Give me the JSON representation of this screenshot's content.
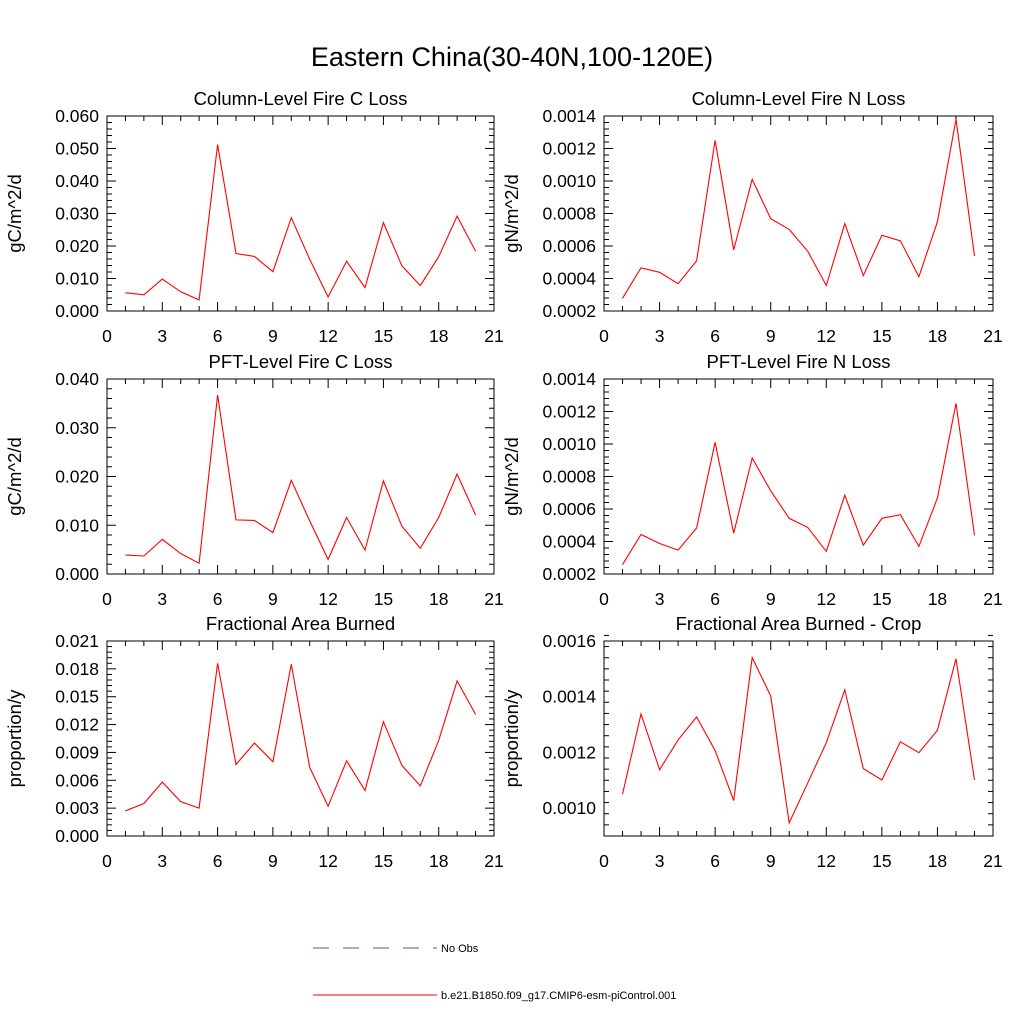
{
  "figure": {
    "title": "Eastern China(30-40N,100-120E)",
    "legend": [
      {
        "label": "No Obs",
        "color": "#4a5fa8",
        "style": "dashed"
      },
      {
        "label": "b.e21.B1850.f09_g17.CMIP6-esm-piControl.001",
        "color": "#ff0000",
        "style": "solid"
      }
    ]
  },
  "chart_data": [
    {
      "type": "line",
      "title": "Column-Level Fire C Loss",
      "ylabel": "gC/m^2/d",
      "xlabel": "",
      "xlim": [
        0,
        21
      ],
      "ylim": [
        0,
        0.06
      ],
      "xticks": [
        "0",
        "3",
        "6",
        "9",
        "12",
        "15",
        "18",
        "21"
      ],
      "yticks": [
        "0.000",
        "0.010",
        "0.020",
        "0.030",
        "0.040",
        "0.050",
        "0.060"
      ],
      "series": [
        {
          "name": "b.e21.B1850.f09_g17.CMIP6-esm-piControl.001",
          "color": "#ff0000",
          "x": [
            1,
            2,
            3,
            4,
            5,
            6,
            7,
            8,
            9,
            10,
            11,
            12,
            13,
            14,
            15,
            16,
            17,
            18,
            19,
            20
          ],
          "values": [
            0.0056,
            0.005,
            0.0098,
            0.0059,
            0.0034,
            0.0512,
            0.0177,
            0.0168,
            0.0121,
            0.0287,
            0.0159,
            0.0043,
            0.0153,
            0.0072,
            0.0272,
            0.0139,
            0.0078,
            0.0167,
            0.0292,
            0.0184
          ]
        }
      ]
    },
    {
      "type": "line",
      "title": "Column-Level Fire N Loss",
      "ylabel": "gN/m^2/d",
      "xlabel": "",
      "xlim": [
        0,
        21
      ],
      "ylim": [
        0.0002,
        0.0014
      ],
      "xticks": [
        "0",
        "3",
        "6",
        "9",
        "12",
        "15",
        "18",
        "21"
      ],
      "yticks": [
        "0.0002",
        "0.0004",
        "0.0006",
        "0.0008",
        "0.0010",
        "0.0012",
        "0.0014"
      ],
      "series": [
        {
          "name": "b.e21.B1850.f09_g17.CMIP6-esm-piControl.001",
          "color": "#ff0000",
          "x": [
            1,
            2,
            3,
            4,
            5,
            6,
            7,
            8,
            9,
            10,
            11,
            12,
            13,
            14,
            15,
            16,
            17,
            18,
            19,
            20
          ],
          "values": [
            0.000278,
            0.000465,
            0.000438,
            0.000368,
            0.000508,
            0.00125,
            0.000576,
            0.00101,
            0.000768,
            0.000702,
            0.000567,
            0.000357,
            0.000737,
            0.000418,
            0.000666,
            0.000632,
            0.000411,
            0.000749,
            0.00138,
            0.000538
          ]
        }
      ]
    },
    {
      "type": "line",
      "title": "PFT-Level Fire C Loss",
      "ylabel": "gC/m^2/d",
      "xlabel": "",
      "xlim": [
        0,
        21
      ],
      "ylim": [
        0,
        0.04
      ],
      "xticks": [
        "0",
        "3",
        "6",
        "9",
        "12",
        "15",
        "18",
        "21"
      ],
      "yticks": [
        "0.000",
        "0.010",
        "0.020",
        "0.030",
        "0.040"
      ],
      "series": [
        {
          "name": "b.e21.B1850.f09_g17.CMIP6-esm-piControl.001",
          "color": "#ff0000",
          "x": [
            1,
            2,
            3,
            4,
            5,
            6,
            7,
            8,
            9,
            10,
            11,
            12,
            13,
            14,
            15,
            16,
            17,
            18,
            19,
            20
          ],
          "values": [
            0.0039,
            0.0037,
            0.0071,
            0.0042,
            0.0022,
            0.0367,
            0.0111,
            0.011,
            0.0085,
            0.0192,
            0.0109,
            0.003,
            0.0116,
            0.0049,
            0.0191,
            0.0098,
            0.0053,
            0.0116,
            0.0205,
            0.0121
          ]
        }
      ]
    },
    {
      "type": "line",
      "title": "PFT-Level Fire N Loss",
      "ylabel": "gN/m^2/d",
      "xlabel": "",
      "xlim": [
        0,
        21
      ],
      "ylim": [
        0.0002,
        0.0014
      ],
      "xticks": [
        "0",
        "3",
        "6",
        "9",
        "12",
        "15",
        "18",
        "21"
      ],
      "yticks": [
        "0.0002",
        "0.0004",
        "0.0006",
        "0.0008",
        "0.0010",
        "0.0012",
        "0.0014"
      ],
      "series": [
        {
          "name": "b.e21.B1850.f09_g17.CMIP6-esm-piControl.001",
          "color": "#ff0000",
          "x": [
            1,
            2,
            3,
            4,
            5,
            6,
            7,
            8,
            9,
            10,
            11,
            12,
            13,
            14,
            15,
            16,
            17,
            18,
            19,
            20
          ],
          "values": [
            0.000257,
            0.000443,
            0.000388,
            0.000347,
            0.000483,
            0.00101,
            0.000451,
            0.000914,
            0.000712,
            0.000543,
            0.000486,
            0.000339,
            0.000685,
            0.000377,
            0.000543,
            0.000565,
            0.00037,
            0.000667,
            0.00125,
            0.000438
          ]
        }
      ]
    },
    {
      "type": "line",
      "title": "Fractional Area Burned",
      "ylabel": "proportion/y",
      "xlabel": "",
      "xlim": [
        0,
        21
      ],
      "ylim": [
        0,
        0.021
      ],
      "xticks": [
        "0",
        "3",
        "6",
        "9",
        "12",
        "15",
        "18",
        "21"
      ],
      "yticks": [
        "0.000",
        "0.003",
        "0.006",
        "0.009",
        "0.012",
        "0.015",
        "0.018",
        "0.021"
      ],
      "series": [
        {
          "name": "b.e21.B1850.f09_g17.CMIP6-esm-piControl.001",
          "color": "#ff0000",
          "x": [
            1,
            2,
            3,
            4,
            5,
            6,
            7,
            8,
            9,
            10,
            11,
            12,
            13,
            14,
            15,
            16,
            17,
            18,
            19,
            20
          ],
          "values": [
            0.0027,
            0.0035,
            0.0058,
            0.0037,
            0.003,
            0.0186,
            0.0077,
            0.01,
            0.008,
            0.0185,
            0.0074,
            0.0032,
            0.0081,
            0.0049,
            0.0123,
            0.0076,
            0.0054,
            0.0103,
            0.0167,
            0.0131
          ]
        }
      ]
    },
    {
      "type": "line",
      "title": "Fractional Area Burned - Crop",
      "ylabel": "proportion/y",
      "xlabel": "",
      "xlim": [
        0,
        21
      ],
      "ylim": [
        0.0009,
        0.0016
      ],
      "xticks": [
        "0",
        "3",
        "6",
        "9",
        "12",
        "15",
        "18",
        "21"
      ],
      "yticks": [
        "0.0010",
        "0.0012",
        "0.0014",
        "0.0016"
      ],
      "series": [
        {
          "name": "b.e21.B1850.f09_g17.CMIP6-esm-piControl.001",
          "color": "#ff0000",
          "x": [
            1,
            2,
            3,
            4,
            5,
            6,
            7,
            8,
            9,
            10,
            11,
            12,
            13,
            14,
            15,
            16,
            17,
            18,
            19,
            20
          ],
          "values": [
            0.00105,
            0.001338,
            0.001138,
            0.001245,
            0.001327,
            0.001207,
            0.001027,
            0.00154,
            0.001403,
            0.000947,
            0.001091,
            0.001235,
            0.001425,
            0.001142,
            0.001101,
            0.001238,
            0.001199,
            0.001279,
            0.001536,
            0.001101
          ]
        }
      ]
    }
  ]
}
